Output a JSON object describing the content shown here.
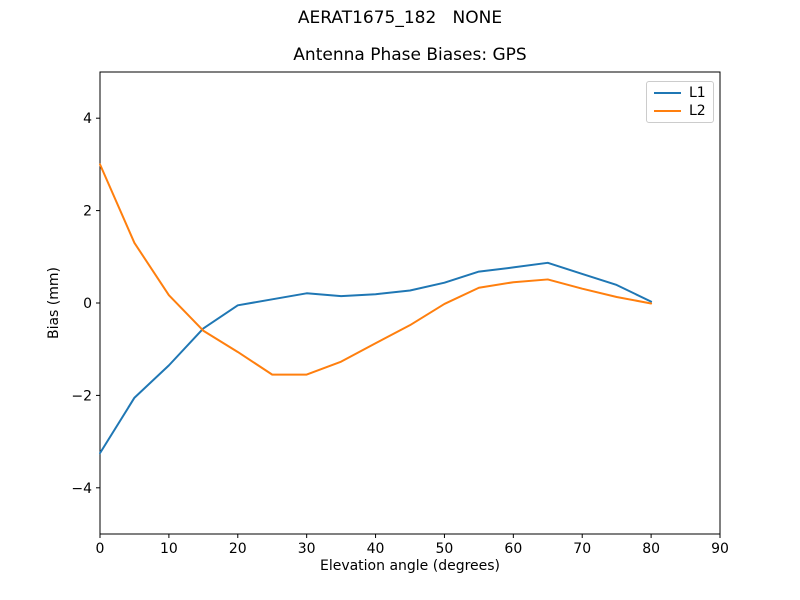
{
  "figure": {
    "suptitle": "AERAT1675_182   NONE",
    "background": "#ffffff",
    "axis_color": "#000000"
  },
  "legend": {
    "position": "upper right",
    "border_color": "#cccccc"
  },
  "chart_data": {
    "type": "line",
    "suptitle": "AERAT1675_182   NONE",
    "title": "Antenna Phase Biases: GPS",
    "xlabel": "Elevation angle (degrees)",
    "ylabel": "Bias (mm)",
    "xlim": [
      0,
      90
    ],
    "ylim": [
      -5,
      5
    ],
    "xticks": [
      0,
      10,
      20,
      30,
      40,
      50,
      60,
      70,
      80,
      90
    ],
    "yticks": [
      -4,
      -2,
      0,
      2,
      4
    ],
    "ytick_labels": [
      "−4",
      "−2",
      "0",
      "2",
      "4"
    ],
    "grid": false,
    "legend_position": "upper right",
    "x": [
      0,
      5,
      10,
      15,
      20,
      25,
      30,
      35,
      40,
      45,
      50,
      55,
      60,
      65,
      70,
      75,
      80
    ],
    "series": [
      {
        "name": "L1",
        "color": "#1f77b4",
        "values": [
          -3.25,
          -2.05,
          -1.35,
          -0.55,
          -0.05,
          0.08,
          0.21,
          0.15,
          0.19,
          0.27,
          0.44,
          0.68,
          0.77,
          0.87,
          0.63,
          0.39,
          0.03
        ]
      },
      {
        "name": "L2",
        "color": "#ff7f0e",
        "values": [
          3.0,
          1.3,
          0.17,
          -0.6,
          -1.06,
          -1.55,
          -1.55,
          -1.27,
          -0.87,
          -0.48,
          -0.02,
          0.33,
          0.45,
          0.51,
          0.31,
          0.13,
          -0.01
        ]
      }
    ]
  }
}
